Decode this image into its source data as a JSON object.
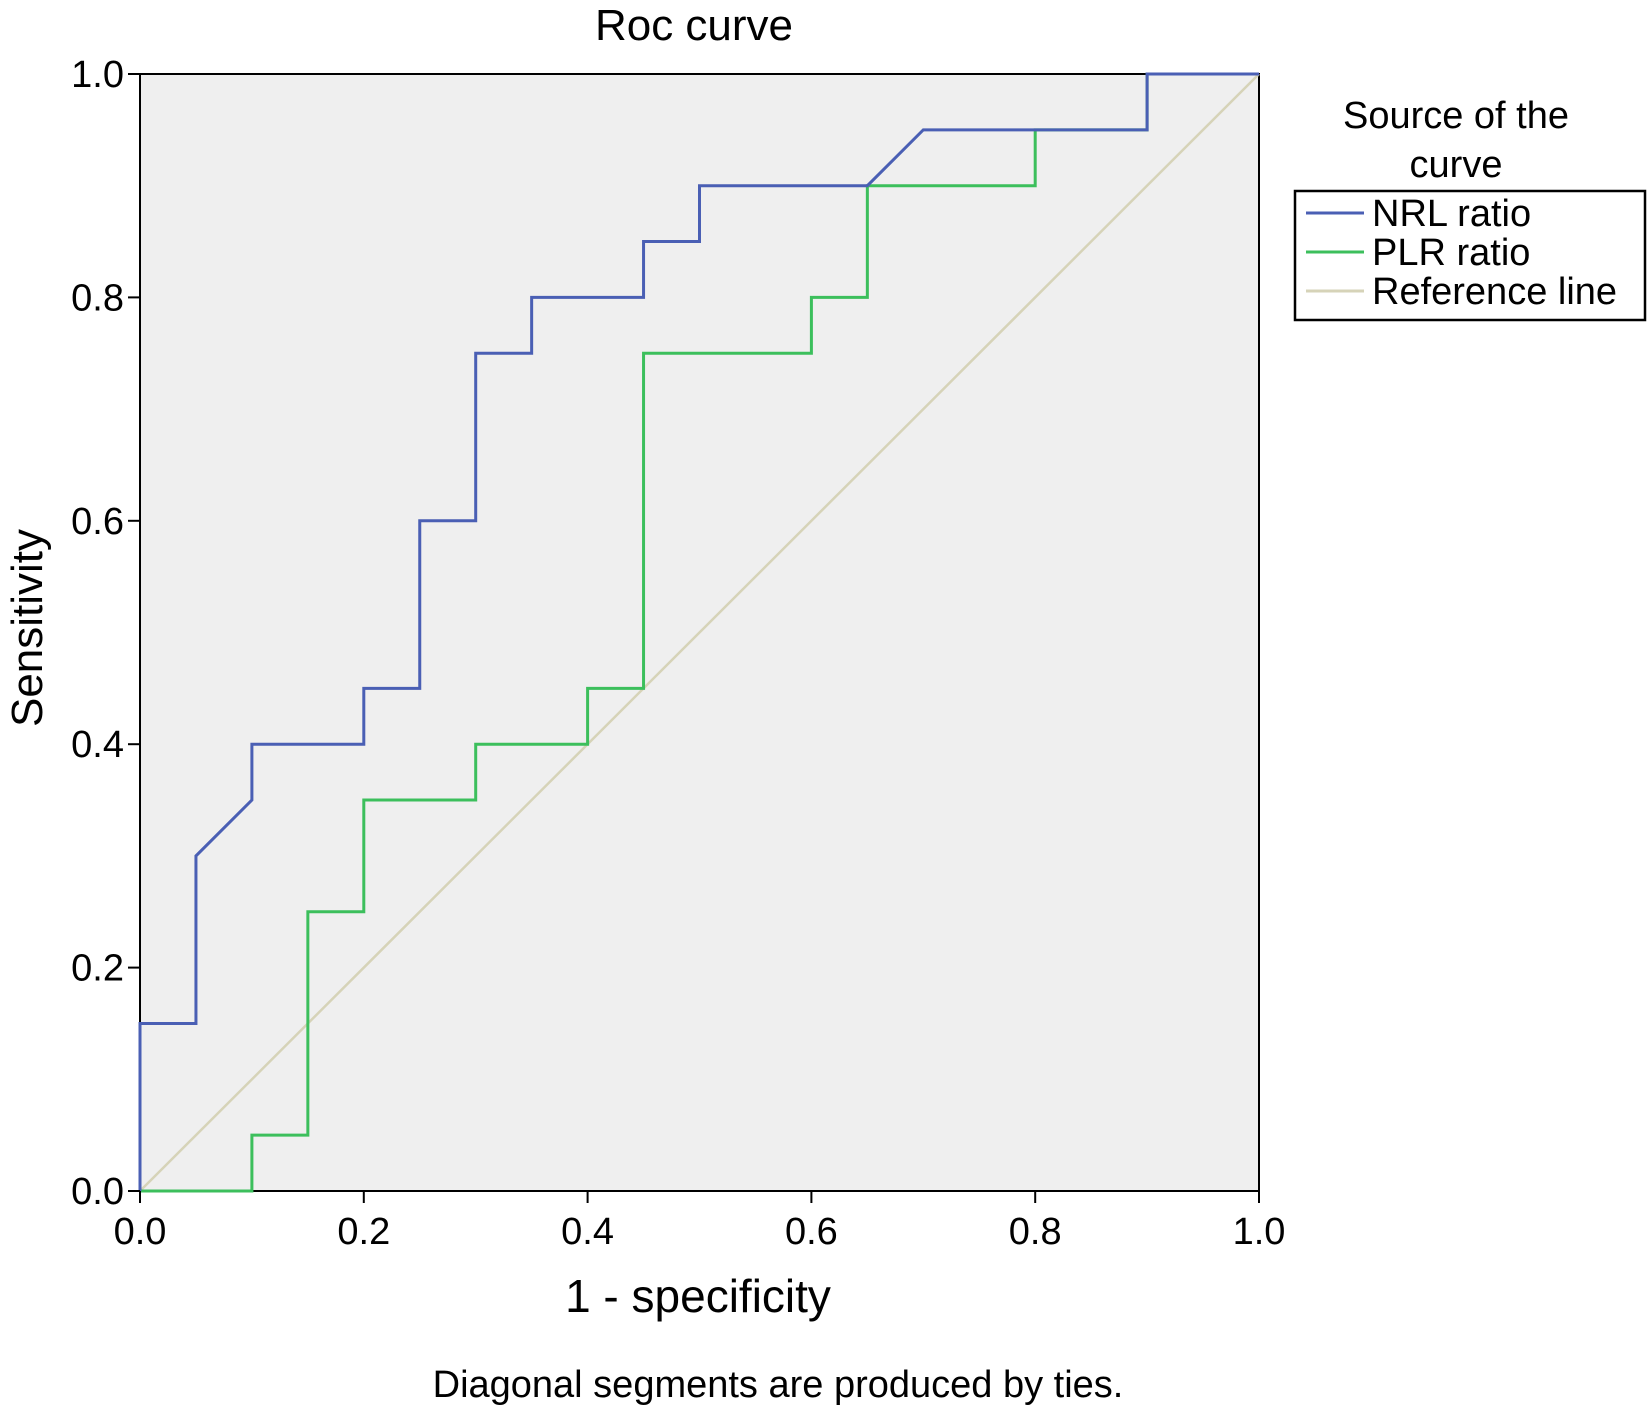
{
  "chart_data": {
    "type": "line",
    "title": "Roc curve",
    "xlabel": "1 - specificity",
    "ylabel": "Sensitivity",
    "xlim": [
      0.0,
      1.0
    ],
    "ylim": [
      0.0,
      1.0
    ],
    "xticks": [
      "0.0",
      "0.2",
      "0.4",
      "0.6",
      "0.8",
      "1.0"
    ],
    "yticks": [
      "0.0",
      "0.2",
      "0.4",
      "0.6",
      "0.8",
      "1.0"
    ],
    "grid": false,
    "legend": {
      "title_line1": "Source of the",
      "title_line2": "curve",
      "placement": "right"
    },
    "footnote": "Diagonal segments are produced by ties.",
    "series": [
      {
        "name": "NRL ratio",
        "color": "#4a5fb4",
        "x": [
          0.0,
          0.0,
          0.05,
          0.05,
          0.1,
          0.1,
          0.2,
          0.2,
          0.25,
          0.25,
          0.3,
          0.3,
          0.35,
          0.35,
          0.45,
          0.45,
          0.5,
          0.5,
          0.65,
          0.7,
          0.9,
          0.9,
          1.0
        ],
        "y": [
          0.0,
          0.15,
          0.15,
          0.3,
          0.35,
          0.4,
          0.4,
          0.45,
          0.45,
          0.6,
          0.6,
          0.75,
          0.75,
          0.8,
          0.8,
          0.85,
          0.85,
          0.9,
          0.9,
          0.95,
          0.95,
          1.0,
          1.0
        ]
      },
      {
        "name": "PLR ratio",
        "color": "#3cbf5c",
        "x": [
          0.0,
          0.1,
          0.1,
          0.15,
          0.15,
          0.2,
          0.2,
          0.3,
          0.3,
          0.4,
          0.4,
          0.45,
          0.45,
          0.6,
          0.6,
          0.65,
          0.65,
          0.8,
          0.8,
          0.9,
          0.9,
          1.0
        ],
        "y": [
          0.0,
          0.0,
          0.05,
          0.05,
          0.25,
          0.25,
          0.35,
          0.35,
          0.4,
          0.4,
          0.45,
          0.45,
          0.75,
          0.75,
          0.8,
          0.8,
          0.9,
          0.9,
          0.95,
          0.95,
          1.0,
          1.0
        ]
      },
      {
        "name": "Reference line",
        "color": "#d6d3b8",
        "x": [
          0.0,
          1.0
        ],
        "y": [
          0.0,
          1.0
        ]
      }
    ],
    "plot_background": "#efefef"
  }
}
